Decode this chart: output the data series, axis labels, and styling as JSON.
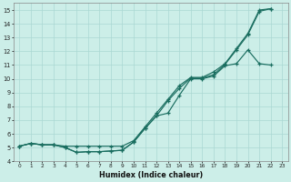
{
  "xlabel": "Humidex (Indice chaleur)",
  "bg_color": "#cceee8",
  "grid_color": "#aad8d3",
  "line_color": "#1a6e60",
  "xlim": [
    -0.5,
    23.5
  ],
  "ylim": [
    4,
    15.5
  ],
  "xticks": [
    0,
    1,
    2,
    3,
    4,
    5,
    6,
    7,
    8,
    9,
    10,
    11,
    12,
    13,
    14,
    15,
    16,
    17,
    18,
    19,
    20,
    21,
    22,
    23
  ],
  "yticks": [
    4,
    5,
    6,
    7,
    8,
    9,
    10,
    11,
    12,
    13,
    14,
    15
  ],
  "line1_x": [
    0,
    1,
    2,
    3,
    4,
    5,
    6,
    7,
    8,
    9,
    10,
    11,
    12,
    13,
    14,
    15,
    16,
    17,
    18,
    19,
    20,
    21,
    22
  ],
  "line1_y": [
    5.1,
    5.3,
    5.2,
    5.2,
    5.1,
    5.1,
    5.1,
    5.1,
    5.1,
    5.1,
    5.5,
    6.5,
    7.5,
    8.5,
    9.5,
    10.1,
    10.1,
    10.5,
    11.1,
    12.2,
    13.3,
    15.0,
    15.1
  ],
  "line2_x": [
    0,
    1,
    2,
    3,
    4,
    5,
    6,
    7,
    8,
    9,
    10,
    11,
    12,
    13,
    14,
    15,
    16,
    17,
    18,
    19,
    20,
    21,
    22
  ],
  "line2_y": [
    5.1,
    5.3,
    5.2,
    5.2,
    5.0,
    4.65,
    4.7,
    4.7,
    4.75,
    4.8,
    5.4,
    6.4,
    7.3,
    8.4,
    9.3,
    10.05,
    10.05,
    10.3,
    11.05,
    12.1,
    13.2,
    14.9,
    15.1
  ],
  "line3_x": [
    0,
    1,
    2,
    3,
    4,
    5,
    6,
    7,
    8,
    9,
    10,
    11,
    12,
    13,
    14,
    15,
    16,
    17,
    18,
    19,
    20,
    21,
    22
  ],
  "line3_y": [
    5.1,
    5.3,
    5.2,
    5.2,
    5.0,
    4.65,
    4.7,
    4.7,
    4.75,
    4.8,
    5.4,
    6.4,
    7.3,
    7.5,
    8.8,
    10.0,
    10.0,
    10.2,
    10.95,
    11.1,
    12.1,
    11.1,
    11.0
  ]
}
